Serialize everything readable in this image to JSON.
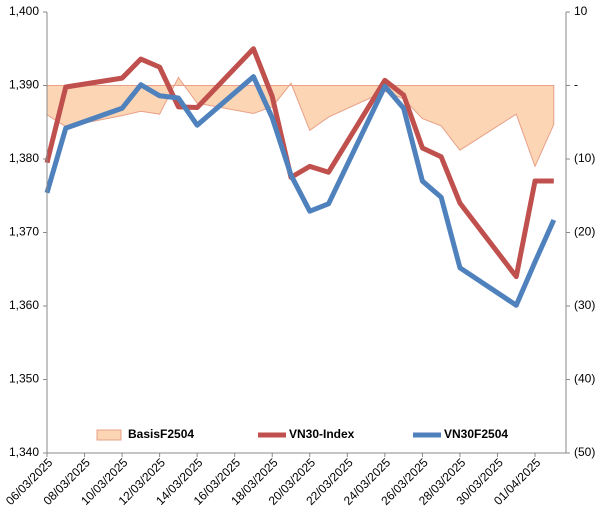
{
  "chart_data": {
    "type": "line",
    "x": [
      "06/03/2025",
      "07/03/2025",
      "10/03/2025",
      "11/03/2025",
      "12/03/2025",
      "13/03/2025",
      "14/03/2025",
      "17/03/2025",
      "18/03/2025",
      "19/03/2025",
      "20/03/2025",
      "21/03/2025",
      "24/03/2025",
      "25/03/2025",
      "26/03/2025",
      "27/03/2025",
      "28/03/2025",
      "31/03/2025",
      "01/04/2025",
      "02/04/2025"
    ],
    "xticks": [
      "06/03/2025",
      "08/03/2025",
      "10/03/2025",
      "12/03/2025",
      "14/03/2025",
      "16/03/2025",
      "18/03/2025",
      "20/03/2025",
      "22/03/2025",
      "24/03/2025",
      "26/03/2025",
      "28/03/2025",
      "30/03/2025",
      "01/04/2025"
    ],
    "series": [
      {
        "name": "BasisF2504",
        "kind": "area",
        "axis": "y2",
        "color": "#fcd5b4",
        "edge": "#e8a088",
        "values": [
          -4,
          -5.6,
          -4.1,
          -3.5,
          -3.9,
          1.1,
          -2.4,
          -3.8,
          -2.9,
          0.3,
          -6.1,
          -4.3,
          -0.8,
          -1.8,
          -4.5,
          -5.5,
          -8.8,
          -3.9,
          -11,
          -5.3
        ]
      },
      {
        "name": "VN30-Index",
        "kind": "line",
        "color": "#c0504d",
        "values": [
          1379.5,
          1389.8,
          1391,
          1393.6,
          1392.5,
          1387.1,
          1387,
          1395,
          1388.5,
          1377.5,
          1379,
          1378.2,
          1390.7,
          1388.7,
          1381.5,
          1380.3,
          1374,
          1364,
          1377,
          1377
        ]
      },
      {
        "name": "VN30F2504",
        "kind": "line",
        "color": "#4f81bd",
        "values": [
          1375.4,
          1384.2,
          1386.9,
          1390.1,
          1388.6,
          1388.3,
          1384.6,
          1391.2,
          1385.6,
          1377.8,
          1372.9,
          1373.9,
          1389.9,
          1386.9,
          1377,
          1374.8,
          1365.2,
          1360.1,
          1366,
          1371.7
        ]
      }
    ],
    "ylim": [
      1340,
      1400
    ],
    "yticks": [
      {
        "value": 1340,
        "label": "1,340"
      },
      {
        "value": 1350,
        "label": "1,350"
      },
      {
        "value": 1360,
        "label": "1,360"
      },
      {
        "value": 1370,
        "label": "1,370"
      },
      {
        "value": 1380,
        "label": "1,380"
      },
      {
        "value": 1390,
        "label": "1,390"
      },
      {
        "value": 1400,
        "label": "1,400"
      }
    ],
    "y2lim": [
      -50,
      10
    ],
    "y2ticks": [
      {
        "value": -50,
        "label": "(50)"
      },
      {
        "value": -40,
        "label": "(40)"
      },
      {
        "value": -30,
        "label": "(30)"
      },
      {
        "value": -20,
        "label": "(20)"
      },
      {
        "value": -10,
        "label": "(10)"
      },
      {
        "value": 0,
        "label": "-"
      },
      10
    ],
    "legend": "bottom"
  }
}
